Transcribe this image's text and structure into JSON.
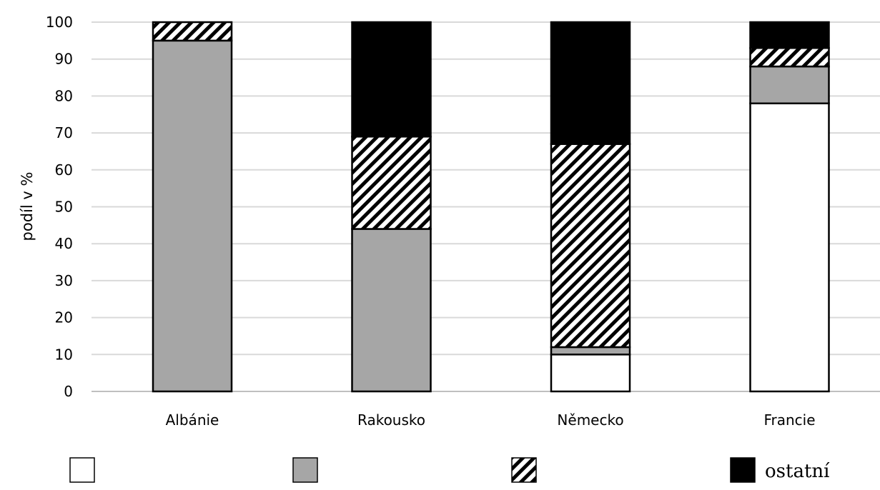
{
  "chart_data": {
    "type": "bar",
    "stacked": true,
    "categories": [
      "Albánie",
      "Rakousko",
      "Německo",
      "Francie"
    ],
    "series": [
      {
        "values": [
          0,
          0,
          10,
          78
        ],
        "fill": "white",
        "color": "#ffffff"
      },
      {
        "values": [
          95,
          44,
          2,
          10
        ],
        "fill": "gray",
        "color": "#a6a6a6"
      },
      {
        "values": [
          5,
          25,
          55,
          5
        ],
        "fill": "hatched",
        "color": "#000000"
      },
      {
        "name": "ostatní",
        "values": [
          0,
          31,
          33,
          7
        ],
        "fill": "black",
        "color": "#000000"
      }
    ],
    "xlabel": "",
    "ylabel": "podíl v %",
    "ylim": [
      0,
      100
    ],
    "yticks": [
      "0",
      "10",
      "20",
      "30",
      "40",
      "50",
      "60",
      "70",
      "80",
      "90",
      "100"
    ],
    "grid": true,
    "legend_position": "bottom"
  }
}
